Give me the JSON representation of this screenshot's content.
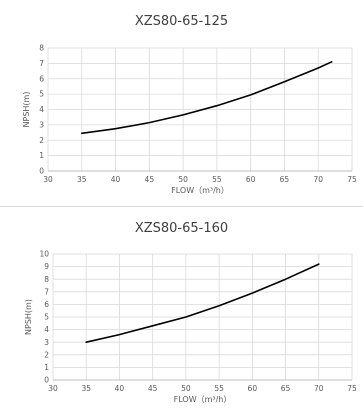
{
  "chart_data": [
    {
      "type": "line",
      "title": "XZS80-65-125",
      "xlabel": "FLOW（m³/h）",
      "ylabel": "NPSH(m)",
      "xlim": [
        30,
        75
      ],
      "ylim": [
        0,
        8
      ],
      "xticks": [
        30,
        35,
        40,
        45,
        50,
        55,
        60,
        65,
        70,
        75
      ],
      "yticks": [
        0,
        1,
        2,
        3,
        4,
        5,
        6,
        7,
        8
      ],
      "grid": true,
      "series": [
        {
          "color": "#000000",
          "x": [
            35,
            40,
            45,
            50,
            55,
            60,
            65,
            70,
            72
          ],
          "y": [
            2.45,
            2.75,
            3.15,
            3.65,
            4.25,
            4.95,
            5.8,
            6.7,
            7.1
          ]
        }
      ]
    },
    {
      "type": "line",
      "title": "XZS80-65-160",
      "xlabel": "FLOW（m³/h）",
      "ylabel": "NPSH(m)",
      "xlim": [
        30,
        75
      ],
      "ylim": [
        0,
        10
      ],
      "xticks": [
        30,
        35,
        40,
        45,
        50,
        55,
        60,
        65,
        70,
        75
      ],
      "yticks": [
        0,
        1,
        2,
        3,
        4,
        5,
        6,
        7,
        8,
        9,
        10
      ],
      "grid": true,
      "series": [
        {
          "color": "#000000",
          "x": [
            35,
            40,
            45,
            50,
            55,
            60,
            65,
            70
          ],
          "y": [
            3.0,
            3.6,
            4.3,
            5.0,
            5.9,
            6.9,
            8.0,
            9.2
          ]
        }
      ]
    }
  ]
}
